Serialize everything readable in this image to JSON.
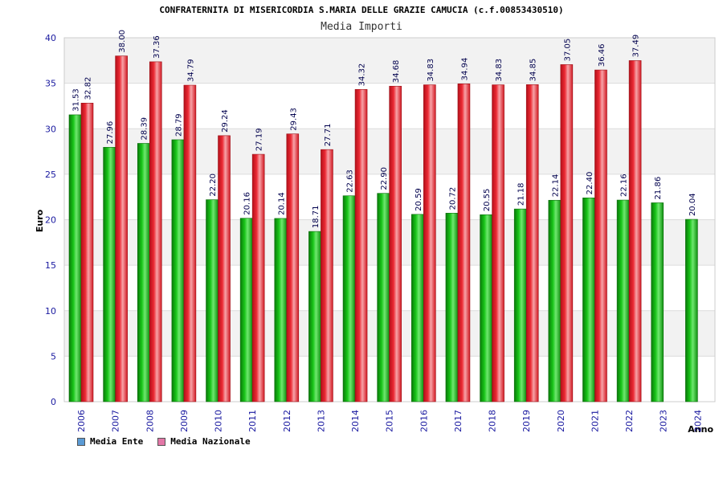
{
  "header": {
    "title": "CONFRATERNITA DI MISERICORDIA S.MARIA DELLE GRAZIE CAMUCIA (c.f.00853430510)",
    "subtitle": "Media Importi"
  },
  "legend": {
    "items": [
      {
        "label": "Media Ente",
        "color": "#5b9bd5"
      },
      {
        "label": "Media Nazionale",
        "color": "#e377a7"
      }
    ]
  },
  "chart_data": {
    "type": "bar",
    "title": "Media Importi",
    "xlabel": "Anno",
    "ylabel": "Euro",
    "ylim": [
      0,
      40
    ],
    "yticks": [
      0,
      5,
      10,
      15,
      20,
      25,
      30,
      35,
      40
    ],
    "categories": [
      "2006",
      "2007",
      "2008",
      "2009",
      "2010",
      "2011",
      "2012",
      "2013",
      "2014",
      "2015",
      "2016",
      "2017",
      "2018",
      "2019",
      "2020",
      "2021",
      "2022",
      "2023",
      "2024"
    ],
    "series": [
      {
        "name": "Media Ente",
        "color": "#1db31d",
        "values": [
          31.53,
          27.96,
          28.39,
          28.79,
          22.2,
          20.16,
          20.14,
          18.71,
          22.63,
          22.9,
          20.59,
          20.72,
          20.55,
          21.18,
          22.14,
          22.4,
          22.16,
          21.86,
          20.04
        ],
        "labels": [
          "31.53",
          "27.96",
          "28.39",
          "28.79",
          "22.20",
          "20.16",
          "20.14",
          "18.71",
          "22.63",
          "22.90",
          "20.59",
          "20.72",
          "20.55",
          "21.18",
          "22.14",
          "22.40",
          "22.16",
          "21.86",
          "20.04"
        ]
      },
      {
        "name": "Media Nazionale",
        "color": "#e8202a",
        "values": [
          32.82,
          38.0,
          37.36,
          34.79,
          29.24,
          27.19,
          29.43,
          27.71,
          34.32,
          34.68,
          34.83,
          34.94,
          34.83,
          34.85,
          37.05,
          36.46,
          37.49,
          null,
          null
        ],
        "labels": [
          "32.82",
          "38.00",
          "37.36",
          "34.79",
          "29.24",
          "27.19",
          "29.43",
          "27.71",
          "34.32",
          "34.68",
          "34.83",
          "34.94",
          "34.83",
          "34.85",
          "37.05",
          "36.46",
          "37.49",
          null,
          null
        ]
      }
    ],
    "grid": true,
    "legend": "bottom-left"
  }
}
